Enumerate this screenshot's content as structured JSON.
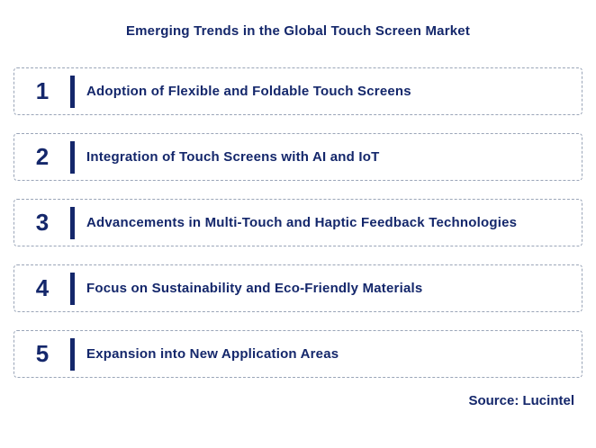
{
  "title": "Emerging Trends in the Global Touch Screen Market",
  "items": [
    {
      "number": "1",
      "label": "Adoption of Flexible and Foldable Touch Screens"
    },
    {
      "number": "2",
      "label": "Integration of Touch Screens with AI and IoT"
    },
    {
      "number": "3",
      "label": "Advancements in Multi-Touch and Haptic Feedback Technologies"
    },
    {
      "number": "4",
      "label": "Focus on Sustainability and Eco-Friendly Materials"
    },
    {
      "number": "5",
      "label": "Expansion into New Application Areas"
    }
  ],
  "source": "Source: Lucintel",
  "colors": {
    "navy": "#14276b",
    "dashed_border": "#9aa5b8",
    "background": "#ffffff"
  }
}
